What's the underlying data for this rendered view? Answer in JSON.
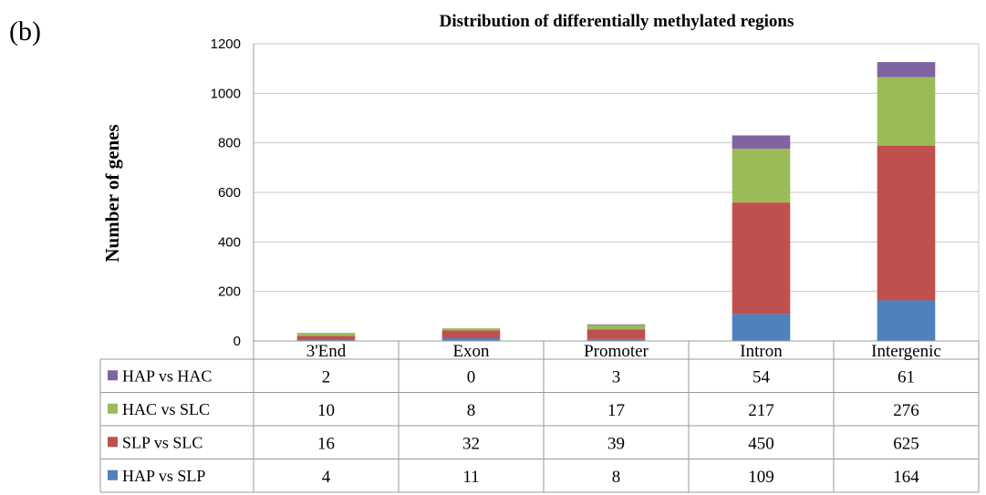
{
  "panel_label": "(b)",
  "chart_data": {
    "type": "bar",
    "stacked": true,
    "title": "Distribution of differentially methylated regions",
    "xlabel": "",
    "ylabel": "Number of genes",
    "ylim": [
      0,
      1200
    ],
    "yticks": [
      0,
      200,
      400,
      600,
      800,
      1000,
      1200
    ],
    "grid": true,
    "legend_placement": "data-table-left",
    "categories": [
      "3'End",
      "Exon",
      "Promoter",
      "Intron",
      "Intergenic"
    ],
    "series": [
      {
        "name": "HAP vs SLP",
        "color": "#4f81bd",
        "values": [
          4,
          11,
          8,
          109,
          164
        ]
      },
      {
        "name": "SLP vs SLC",
        "color": "#c0504d",
        "values": [
          16,
          32,
          39,
          450,
          625
        ]
      },
      {
        "name": "HAC vs SLC",
        "color": "#9bbb59",
        "values": [
          10,
          8,
          17,
          217,
          276
        ]
      },
      {
        "name": "HAP vs HAC",
        "color": "#8064a2",
        "values": [
          2,
          0,
          3,
          54,
          61
        ]
      }
    ]
  }
}
